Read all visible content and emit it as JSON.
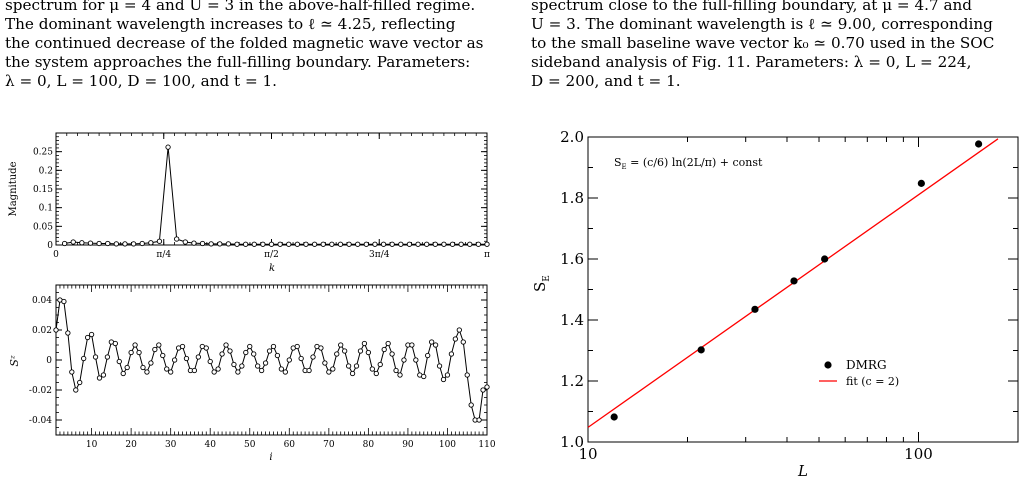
{
  "left_caption": {
    "lines": [
      "spectrum for μ = 4 and U = 3 in the above-half-filled regime.",
      "The dominant wavelength increases to ℓ ≃ 4.25, reflecting",
      "the continued decrease of the folded magnetic wave vector as",
      "the system approaches the full-filling boundary. Parameters:",
      "λ = 0, L = 100, D = 100, and t = 1."
    ]
  },
  "right_caption": {
    "lines": [
      "spectrum close to the full-filling boundary, at μ = 4.7 and",
      "U = 3. The dominant wavelength is ℓ ≃ 9.00, corresponding",
      "to the small baseline wave vector k₀ ≃ 0.70 used in the SOC",
      "sideband analysis of Fig. 11. Parameters: λ = 0, L = 224,",
      "D = 200, and t = 1."
    ]
  },
  "chart_data": [
    {
      "type": "line",
      "panel": "fourier-magnitude",
      "xlabel": "k",
      "ylabel": "Magnitude",
      "xlim": [
        0,
        3.14159
      ],
      "ylim": [
        0,
        0.3
      ],
      "x_tick_values": [
        0,
        0.7854,
        1.5708,
        2.3562,
        3.14159
      ],
      "x_tick_labels": [
        "0",
        "π/4",
        "π/2",
        "3π/4",
        "π"
      ],
      "y_tick_values": [
        0,
        0.05,
        0.1,
        0.15,
        0.2,
        0.25
      ],
      "y_tick_labels": [
        "0",
        "0.05",
        "0.1",
        "0.15",
        "0.2",
        "0.25"
      ],
      "x": [
        0.0628,
        0.1257,
        0.1885,
        0.2513,
        0.3142,
        0.377,
        0.4398,
        0.5027,
        0.5655,
        0.6283,
        0.6912,
        0.754,
        0.8168,
        0.8796,
        0.9425,
        1.0053,
        1.0681,
        1.131,
        1.1938,
        1.2566,
        1.3195,
        1.3823,
        1.4451,
        1.508,
        1.5708,
        1.6336,
        1.6965,
        1.7593,
        1.8221,
        1.885,
        1.9478,
        2.0106,
        2.0735,
        2.1363,
        2.1991,
        2.2619,
        2.3248,
        2.3876,
        2.4504,
        2.5133,
        2.5761,
        2.6389,
        2.7018,
        2.7646,
        2.8274,
        2.8903,
        2.9531,
        3.0159,
        3.0788,
        3.1416
      ],
      "y": [
        0.004,
        0.008,
        0.006,
        0.005,
        0.004,
        0.004,
        0.003,
        0.003,
        0.003,
        0.004,
        0.006,
        0.01,
        0.262,
        0.016,
        0.008,
        0.005,
        0.004,
        0.003,
        0.003,
        0.003,
        0.002,
        0.002,
        0.002,
        0.002,
        0.002,
        0.002,
        0.002,
        0.002,
        0.002,
        0.002,
        0.002,
        0.002,
        0.002,
        0.002,
        0.002,
        0.002,
        0.002,
        0.002,
        0.002,
        0.002,
        0.002,
        0.002,
        0.002,
        0.002,
        0.002,
        0.002,
        0.002,
        0.002,
        0.002,
        0.002
      ]
    },
    {
      "type": "line",
      "panel": "spin-profile",
      "xlabel": "i",
      "ylabel": "Sᶻ",
      "xlim": [
        1,
        110
      ],
      "ylim": [
        -0.05,
        0.05
      ],
      "x_tick_values": [
        10,
        20,
        30,
        40,
        50,
        60,
        70,
        80,
        90,
        100,
        110
      ],
      "y_tick_values": [
        -0.04,
        -0.02,
        0,
        0.02,
        0.04
      ],
      "y_tick_labels": [
        "-0.04",
        "-0.02",
        "0",
        "0.02",
        "0.04"
      ],
      "x": [
        1,
        2,
        3,
        4,
        5,
        6,
        7,
        8,
        9,
        10,
        11,
        12,
        13,
        14,
        15,
        16,
        17,
        18,
        19,
        20,
        21,
        22,
        23,
        24,
        25,
        26,
        27,
        28,
        29,
        30,
        31,
        32,
        33,
        34,
        35,
        36,
        37,
        38,
        39,
        40,
        41,
        42,
        43,
        44,
        45,
        46,
        47,
        48,
        49,
        50,
        51,
        52,
        53,
        54,
        55,
        56,
        57,
        58,
        59,
        60,
        61,
        62,
        63,
        64,
        65,
        66,
        67,
        68,
        69,
        70,
        71,
        72,
        73,
        74,
        75,
        76,
        77,
        78,
        79,
        80,
        81,
        82,
        83,
        84,
        85,
        86,
        87,
        88,
        89,
        90,
        91,
        92,
        93,
        94,
        95,
        96,
        97,
        98,
        99,
        100,
        101,
        102,
        103,
        104,
        105,
        106,
        107,
        108,
        109,
        110
      ],
      "y": [
        0.02,
        0.04,
        0.039,
        0.018,
        -0.008,
        -0.02,
        -0.015,
        0.001,
        0.015,
        0.017,
        0.002,
        -0.012,
        -0.01,
        0.002,
        0.012,
        0.011,
        -0.001,
        -0.009,
        -0.005,
        0.005,
        0.01,
        0.005,
        -0.005,
        -0.008,
        -0.002,
        0.007,
        0.01,
        0.003,
        -0.006,
        -0.008,
        0.0,
        0.008,
        0.009,
        0.001,
        -0.007,
        -0.007,
        0.002,
        0.009,
        0.008,
        -0.001,
        -0.008,
        -0.006,
        0.004,
        0.01,
        0.006,
        -0.003,
        -0.008,
        -0.004,
        0.005,
        0.009,
        0.004,
        -0.004,
        -0.007,
        -0.002,
        0.006,
        0.009,
        0.003,
        -0.006,
        -0.008,
        0.0,
        0.008,
        0.009,
        0.001,
        -0.007,
        -0.007,
        0.002,
        0.009,
        0.008,
        -0.002,
        -0.008,
        -0.006,
        0.004,
        0.01,
        0.006,
        -0.004,
        -0.009,
        -0.004,
        0.006,
        0.011,
        0.005,
        -0.006,
        -0.009,
        -0.003,
        0.007,
        0.011,
        0.004,
        -0.007,
        -0.01,
        0.0,
        0.01,
        0.01,
        0.0,
        -0.01,
        -0.011,
        0.003,
        0.012,
        0.01,
        -0.004,
        -0.013,
        -0.01,
        0.004,
        0.014,
        0.02,
        0.012,
        -0.01,
        -0.03,
        -0.04,
        -0.04,
        -0.02,
        -0.018
      ]
    },
    {
      "type": "scatter",
      "panel": "entanglement-entropy",
      "xlabel": "L",
      "ylabel": "S_E",
      "ylabel_main": "S",
      "ylabel_sub": "E",
      "x_scale": "log",
      "xlim": [
        10,
        200
      ],
      "ylim": [
        1.0,
        2.0
      ],
      "x_tick_values": [
        10,
        100
      ],
      "x_tick_labels": [
        "10",
        "100"
      ],
      "y_tick_values": [
        1.0,
        1.2,
        1.4,
        1.6,
        1.8,
        2.0
      ],
      "y_tick_labels": [
        "1.0",
        "1.2",
        "1.4",
        "1.6",
        "1.8",
        "2.0"
      ],
      "annotation_main": "S",
      "annotation_sub": "E",
      "annotation_rest": " = (c/6) ln(2L/π) + const",
      "series": [
        {
          "name": "DMRG",
          "x": [
            12,
            22,
            32,
            42,
            52,
            102,
            152
          ],
          "y": [
            1.082,
            1.302,
            1.435,
            1.528,
            1.6,
            1.848,
            1.977
          ],
          "color": "#000000"
        },
        {
          "name": "fit (c = 2)",
          "type": "line",
          "x": [
            10,
            174
          ],
          "y": [
            1.048,
            1.994
          ],
          "color": "#ff0000"
        }
      ],
      "legend_placement": "lower-right"
    }
  ]
}
